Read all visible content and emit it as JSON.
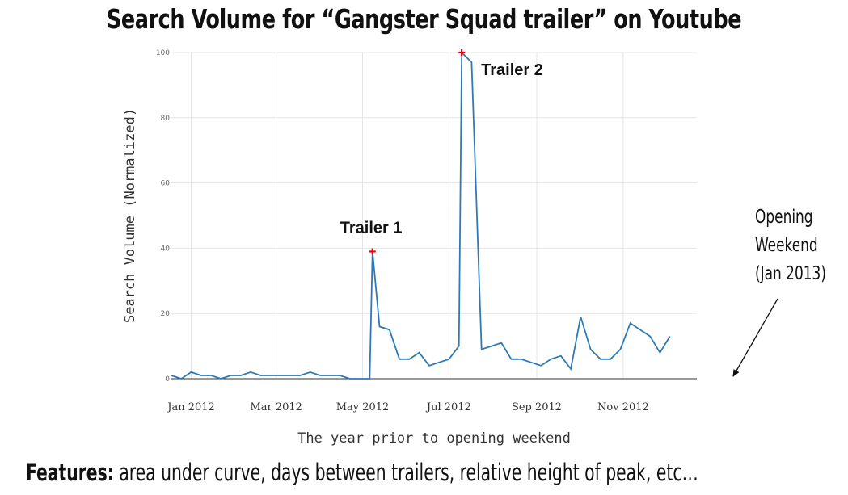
{
  "slide": {
    "title": "Search Volume for “Gangster Squad trailer” on Youtube",
    "side_note_lines": [
      "Opening",
      "Weekend",
      "(Jan 2013)"
    ],
    "features_label": "Features:",
    "features_text": " area under curve, days between trailers, relative height of peak, etc…"
  },
  "chart_data": {
    "type": "line",
    "title": "",
    "xlabel": "The year prior to opening weekend",
    "ylabel": "Search Volume (Normalized)",
    "ylim": [
      0,
      100
    ],
    "yticks": [
      0,
      20,
      40,
      60,
      80,
      100
    ],
    "xlim": [
      "2011-12-18",
      "2012-12-23"
    ],
    "xticks": [
      {
        "date": "2012-01-01",
        "label": "Jan 2012"
      },
      {
        "date": "2012-03-01",
        "label": "Mar 2012"
      },
      {
        "date": "2012-05-01",
        "label": "May 2012"
      },
      {
        "date": "2012-07-01",
        "label": "Jul 2012"
      },
      {
        "date": "2012-09-01",
        "label": "Sep 2012"
      },
      {
        "date": "2012-11-01",
        "label": "Nov 2012"
      }
    ],
    "grid": true,
    "line_color": "#2e7ab8",
    "marker_color": "#e8000b",
    "series": [
      {
        "points": [
          [
            "2011-12-18",
            1
          ],
          [
            "2011-12-25",
            0
          ],
          [
            "2012-01-01",
            2
          ],
          [
            "2012-01-08",
            1
          ],
          [
            "2012-01-15",
            1
          ],
          [
            "2012-01-22",
            0
          ],
          [
            "2012-01-29",
            1
          ],
          [
            "2012-02-05",
            1
          ],
          [
            "2012-02-12",
            2
          ],
          [
            "2012-02-19",
            1
          ],
          [
            "2012-02-26",
            1
          ],
          [
            "2012-03-04",
            1
          ],
          [
            "2012-03-11",
            1
          ],
          [
            "2012-03-18",
            1
          ],
          [
            "2012-03-25",
            2
          ],
          [
            "2012-04-01",
            1
          ],
          [
            "2012-04-08",
            1
          ],
          [
            "2012-04-15",
            1
          ],
          [
            "2012-04-22",
            0
          ],
          [
            "2012-04-29",
            0
          ],
          [
            "2012-05-06",
            0
          ],
          [
            "2012-05-08",
            39
          ],
          [
            "2012-05-13",
            16
          ],
          [
            "2012-05-20",
            15
          ],
          [
            "2012-05-27",
            6
          ],
          [
            "2012-06-03",
            6
          ],
          [
            "2012-06-10",
            8
          ],
          [
            "2012-06-17",
            4
          ],
          [
            "2012-06-24",
            5
          ],
          [
            "2012-07-01",
            6
          ],
          [
            "2012-07-08",
            10
          ],
          [
            "2012-07-10",
            100
          ],
          [
            "2012-07-17",
            97
          ],
          [
            "2012-07-24",
            9
          ],
          [
            "2012-07-31",
            10
          ],
          [
            "2012-08-07",
            11
          ],
          [
            "2012-08-14",
            6
          ],
          [
            "2012-08-21",
            6
          ],
          [
            "2012-08-28",
            5
          ],
          [
            "2012-09-04",
            4
          ],
          [
            "2012-09-11",
            6
          ],
          [
            "2012-09-18",
            7
          ],
          [
            "2012-09-25",
            3
          ],
          [
            "2012-10-02",
            19
          ],
          [
            "2012-10-09",
            9
          ],
          [
            "2012-10-16",
            6
          ],
          [
            "2012-10-23",
            6
          ],
          [
            "2012-10-30",
            9
          ],
          [
            "2012-11-06",
            17
          ],
          [
            "2012-11-13",
            15
          ],
          [
            "2012-11-20",
            13
          ],
          [
            "2012-11-27",
            8
          ],
          [
            "2012-12-04",
            13
          ]
        ]
      }
    ],
    "annotations": [
      {
        "text": "Trailer 1",
        "date": "2012-05-08",
        "value": 39
      },
      {
        "text": "Trailer 2",
        "date": "2012-07-10",
        "value": 100
      }
    ]
  }
}
